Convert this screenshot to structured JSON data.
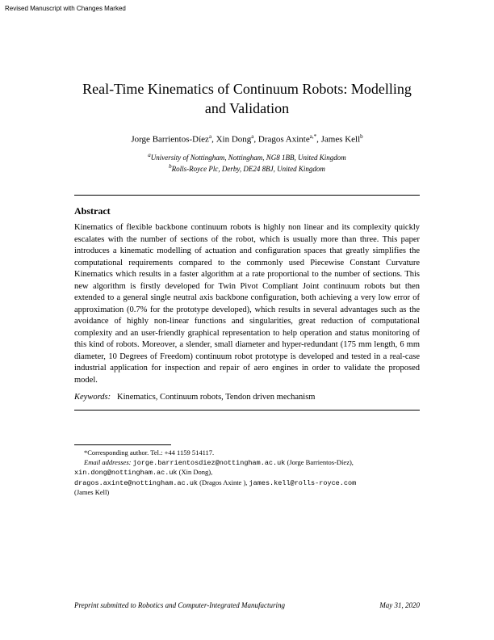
{
  "header_note": "Revised Manuscript with Changes Marked",
  "title": "Real-Time Kinematics of Continuum Robots: Modelling and Validation",
  "authors_html": "Jorge Barrientos-Díez<sup>a</sup>, Xin Dong<sup>a</sup>, Dragos Axinte<sup>a,*</sup>, James Kell<sup>b</sup>",
  "affiliations": {
    "a": "University of Nottingham, Nottingham, NG8 1BB, United Kingdom",
    "b": "Rolls-Royce Plc, Derby, DE24 8BJ, United Kingdom"
  },
  "abstract_heading": "Abstract",
  "abstract": "Kinematics of flexible backbone continuum robots is highly non linear and its complexity quickly escalates with the number of sections of the robot, which is usually more than three. This paper introduces a kinematic modelling of actuation and configuration spaces that greatly simplifies the computational requirements compared to the commonly used Piecewise Constant Curvature Kinematics which results in a faster algorithm at a rate proportional to the number of sections. This new algorithm is firstly developed for Twin Pivot Compliant Joint continuum robots but then extended to a general single neutral axis backbone configuration, both achieving a very low error of approximation (0.7% for the prototype developed), which results in several advantages such as the avoidance of highly non-linear functions and singularities, great reduction of computational complexity and an user-friendly graphical representation to help operation and status monitoring of this kind of robots. Moreover, a slender, small diameter and hyper-redundant (175 mm length, 6 mm diameter, 10 Degrees of Freedom) continuum robot prototype is developed and tested in a real-case industrial application for inspection and repair of aero engines in order to validate the proposed model.",
  "keywords_label": "Keywords:",
  "keywords": "Kinematics, Continuum robots, Tendon driven mechanism",
  "footnotes": {
    "corresponding": "*Corresponding author. Tel.: +44 1159 514117.",
    "email_label": "Email addresses:",
    "emails": [
      {
        "addr": "jorge.barrientosdiez@nottingham.ac.uk",
        "name": "(Jorge Barrientos-Díez)"
      },
      {
        "addr": "xin.dong@nottingham.ac.uk",
        "name": "(Xin Dong)"
      },
      {
        "addr": "dragos.axinte@nottingham.ac.uk",
        "name": "(Dragos Axinte )"
      },
      {
        "addr": "james.kell@rolls-royce.com",
        "name": "(James Kell)"
      }
    ]
  },
  "footer": {
    "left": "Preprint submitted to Robotics and Computer-Integrated Manufacturing",
    "right": "May 31, 2020"
  }
}
